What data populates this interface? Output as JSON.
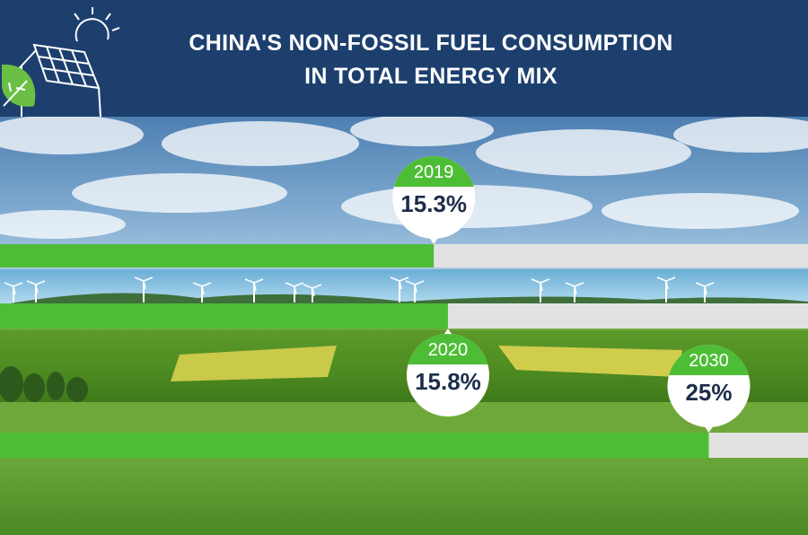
{
  "title": {
    "line1": "CHINA'S NON-FOSSIL FUEL CONSUMPTION",
    "line2": "IN TOTAL ENERGY MIX"
  },
  "icons": [
    "sun-icon",
    "solar-panel-icon",
    "leaf-icon",
    "wind-turbine-icon"
  ],
  "colors": {
    "header_bg": "#1d3f6e",
    "bar_fill": "#4ebd36",
    "bar_track": "#e2e2e2",
    "bubble_header": "#4ebd36",
    "bubble_text": "#1d2d4a"
  },
  "chart_data": {
    "type": "bar",
    "orientation": "horizontal",
    "title": "CHINA'S NON-FOSSIL FUEL CONSUMPTION IN TOTAL ENERGY MIX",
    "categories": [
      "2019",
      "2020",
      "2030"
    ],
    "values": [
      15.3,
      15.8,
      25
    ],
    "value_labels": [
      "15.3%",
      "15.8%",
      "25%"
    ],
    "unit": "%",
    "xlim": [
      0,
      28.5
    ],
    "grid": false,
    "legend": "none"
  }
}
